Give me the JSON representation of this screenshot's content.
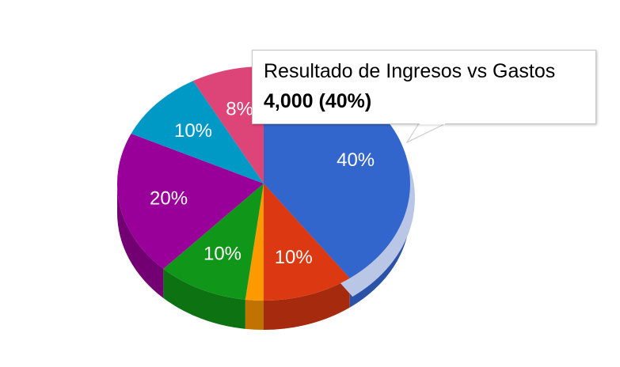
{
  "colors": {
    "highlight_halo": "#b9c6e6",
    "tooltip_border": "#c8c8c8"
  },
  "tooltip": {
    "title": "Resultado de Ingresos vs Gastos",
    "value": "4,000 (40%)"
  },
  "chart_data": {
    "type": "pie",
    "style": "3d",
    "title": "",
    "legend": "none",
    "highlighted_slice": "Resultado de Ingresos vs Gastos",
    "slices": [
      {
        "label": "",
        "value": 40,
        "display": "40%",
        "color": "#3366cc",
        "side_color": "#2a52a6"
      },
      {
        "label": "",
        "value": 10,
        "display": "10%",
        "color": "#dc3912",
        "side_color": "#a62b0e"
      },
      {
        "label": "",
        "value": 2,
        "display": "",
        "color": "#ff9900",
        "side_color": "#c07300"
      },
      {
        "label": "",
        "value": 10,
        "display": "10%",
        "color": "#109618",
        "side_color": "#0c7212"
      },
      {
        "label": "",
        "value": 20,
        "display": "20%",
        "color": "#990099",
        "side_color": "#730073"
      },
      {
        "label": "",
        "value": 10,
        "display": "10%",
        "color": "#0099c6",
        "side_color": "#007396"
      },
      {
        "label": "",
        "value": 8,
        "display": "8%",
        "color": "#dd4477",
        "side_color": "#a8335a"
      }
    ]
  }
}
